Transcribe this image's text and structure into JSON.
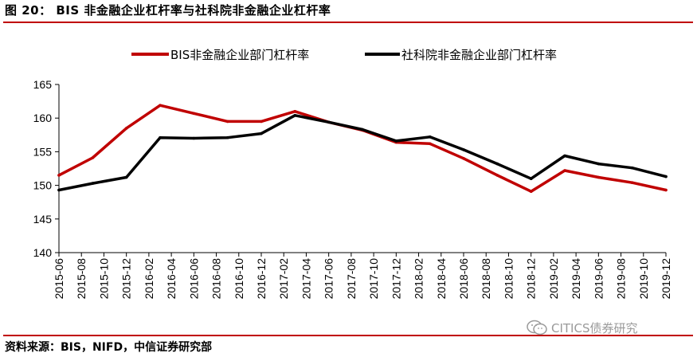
{
  "header": {
    "title": "图 20： BIS 非金融企业杠杆率与社科院非金融企业杠杆率"
  },
  "footer": {
    "source": "资料来源：BIS，NIFD，中信证券研究部"
  },
  "watermark": {
    "text": "CITICS债券研究",
    "icon": "wechat-icon"
  },
  "colors": {
    "rule": "#c00000",
    "series_bis": "#c00000",
    "series_cass": "#000000"
  },
  "chart_data": {
    "type": "line",
    "title": "",
    "xlabel": "",
    "ylabel": "",
    "ylim": [
      140,
      165
    ],
    "yticks": [
      140,
      145,
      150,
      155,
      160,
      165
    ],
    "grid": false,
    "legend_position": "top",
    "x": [
      "2015-06",
      "2015-08",
      "2015-10",
      "2015-12",
      "2016-02",
      "2016-04",
      "2016-06",
      "2016-08",
      "2016-10",
      "2016-12",
      "2017-02",
      "2017-04",
      "2017-06",
      "2017-08",
      "2017-10",
      "2017-12",
      "2018-02",
      "2018-04",
      "2018-06",
      "2018-08",
      "2018-10",
      "2018-12",
      "2019-02",
      "2019-04",
      "2019-06",
      "2019-08",
      "2019-10",
      "2019-12"
    ],
    "series": [
      {
        "name": "BIS非金融企业部门杠杆率",
        "color": "#c00000",
        "points": [
          [
            "2015-06",
            151.5
          ],
          [
            "2015-09",
            154.1
          ],
          [
            "2015-12",
            158.5
          ],
          [
            "2016-03",
            161.9
          ],
          [
            "2016-06",
            160.7
          ],
          [
            "2016-09",
            159.5
          ],
          [
            "2016-12",
            159.5
          ],
          [
            "2017-03",
            161.0
          ],
          [
            "2017-06",
            159.4
          ],
          [
            "2017-09",
            158.2
          ],
          [
            "2017-12",
            156.4
          ],
          [
            "2018-03",
            156.2
          ],
          [
            "2018-06",
            154.0
          ],
          [
            "2018-09",
            151.5
          ],
          [
            "2018-12",
            149.1
          ],
          [
            "2019-03",
            152.2
          ],
          [
            "2019-06",
            151.2
          ],
          [
            "2019-09",
            150.4
          ],
          [
            "2019-12",
            149.3
          ]
        ]
      },
      {
        "name": "社科院非金融企业部门杠杆率",
        "color": "#000000",
        "points": [
          [
            "2015-06",
            149.3
          ],
          [
            "2015-09",
            150.3
          ],
          [
            "2015-12",
            151.2
          ],
          [
            "2016-03",
            157.1
          ],
          [
            "2016-06",
            157.0
          ],
          [
            "2016-09",
            157.1
          ],
          [
            "2016-12",
            157.7
          ],
          [
            "2017-03",
            160.4
          ],
          [
            "2017-06",
            159.4
          ],
          [
            "2017-09",
            158.3
          ],
          [
            "2017-12",
            156.6
          ],
          [
            "2018-03",
            157.2
          ],
          [
            "2018-06",
            155.3
          ],
          [
            "2018-09",
            153.2
          ],
          [
            "2018-12",
            151.0
          ],
          [
            "2019-03",
            154.4
          ],
          [
            "2019-06",
            153.2
          ],
          [
            "2019-09",
            152.6
          ],
          [
            "2019-12",
            151.3
          ]
        ]
      }
    ]
  }
}
